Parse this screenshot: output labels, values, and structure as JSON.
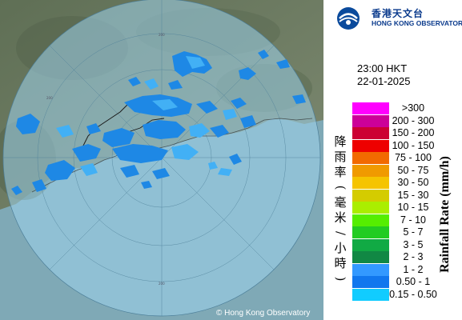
{
  "organization": {
    "name_zh": "香港天文台",
    "name_en": "HONG KONG OBSERVATORY"
  },
  "timestamp": {
    "time": "23:00 HKT",
    "date": "22-01-2025"
  },
  "legend": {
    "title_zh": "降雨率(毫米/小時)",
    "title_en": "Rainfall Rate (mm/h)",
    "items": [
      {
        "label": ">300",
        "color": "#ff00ff"
      },
      {
        "label": "200 - 300",
        "color": "#cc0099"
      },
      {
        "label": "150 - 200",
        "color": "#cc0033"
      },
      {
        "label": "100 - 150",
        "color": "#ee0000"
      },
      {
        "label": "75 - 100",
        "color": "#f26a00"
      },
      {
        "label": "50 - 75",
        "color": "#f09a00"
      },
      {
        "label": "30 - 50",
        "color": "#f5c400"
      },
      {
        "label": "15 - 30",
        "color": "#d4cc00"
      },
      {
        "label": "10 - 15",
        "color": "#aaee00"
      },
      {
        "label": "7 - 10",
        "color": "#55ee00"
      },
      {
        "label": "5 - 7",
        "color": "#22cc22"
      },
      {
        "label": "3 - 5",
        "color": "#11aa44"
      },
      {
        "label": "2 - 3",
        "color": "#118844"
      },
      {
        "label": "1 - 2",
        "color": "#3399ff"
      },
      {
        "label": "0.50 - 1",
        "color": "#1177ee"
      },
      {
        "label": "0.15 - 0.50",
        "color": "#11ccff"
      }
    ]
  },
  "map": {
    "copyright": "© Hong Kong Observatory",
    "range_rings": [
      "200",
      "200",
      "200"
    ]
  }
}
